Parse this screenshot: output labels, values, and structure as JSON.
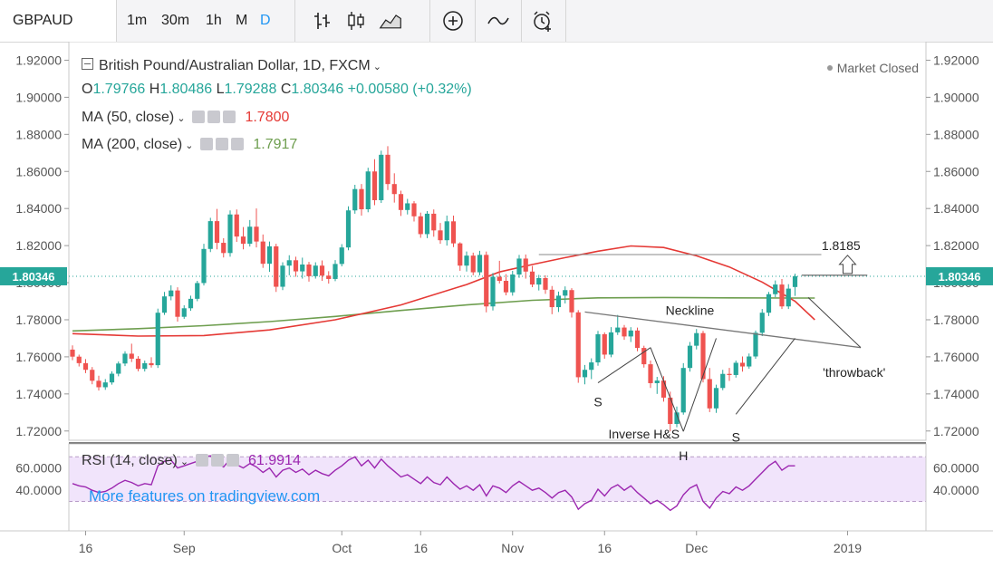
{
  "toolbar": {
    "symbol": "GBPAUD",
    "intervals": [
      "1m",
      "30m",
      "1h",
      "M",
      "D"
    ],
    "active_interval": "D",
    "icons": [
      "bar-style-icon",
      "candle-style-icon",
      "area-style-icon",
      "add-indicator-icon",
      "drawing-icon",
      "alert-icon"
    ]
  },
  "legend": {
    "title": "British Pound/Australian Dollar, 1D, FXCM",
    "ohlc": [
      {
        "k": "O",
        "v": "1.79766"
      },
      {
        "k": "H",
        "v": "1.80486"
      },
      {
        "k": "L",
        "v": "1.79288"
      },
      {
        "k": "C",
        "v": "1.80346"
      }
    ],
    "change": "+0.00580 (+0.32%)",
    "ma50_label": "MA (50, close)",
    "ma50_value": "1.7800",
    "ma200_label": "MA (200, close)",
    "ma200_value": "1.7917",
    "market_status": "Market Closed"
  },
  "rsi": {
    "label": "RSI (14, close)",
    "value": "61.9914",
    "ticks": [
      "60.0000",
      "40.0000"
    ]
  },
  "promo": "More features on tradingview.com",
  "colors": {
    "up": "#26a69a",
    "down": "#ef5350",
    "ma50": "#e53935",
    "ma200": "#6e9e4f",
    "rsi_line": "#9c27b0",
    "rsi_band": "#f1e4fb",
    "price_label_bg": "#26a69a",
    "link": "#2196f3"
  },
  "chart_data": {
    "type": "candlestick",
    "symbol": "GBPAUD",
    "ylim": [
      1.715,
      1.93
    ],
    "ytick_labels": [
      "1.92000",
      "1.90000",
      "1.88000",
      "1.86000",
      "1.84000",
      "1.82000",
      "1.80000",
      "1.78000",
      "1.76000",
      "1.74000",
      "1.72000"
    ],
    "last_price_label": "1.80346",
    "xtick_labels": [
      "16",
      "Sep",
      "Oct",
      "16",
      "Nov",
      "16",
      "Dec",
      "2019"
    ],
    "candles": [
      [
        1.7639,
        1.7662,
        1.7582,
        1.7601
      ],
      [
        1.7601,
        1.7612,
        1.7548,
        1.7566
      ],
      [
        1.7566,
        1.7588,
        1.7512,
        1.753
      ],
      [
        1.753,
        1.7545,
        1.7452,
        1.7471
      ],
      [
        1.7471,
        1.7498,
        1.7418,
        1.7436
      ],
      [
        1.7436,
        1.748,
        1.7422,
        1.7462
      ],
      [
        1.7462,
        1.7522,
        1.745,
        1.7509
      ],
      [
        1.7509,
        1.7575,
        1.7495,
        1.7564
      ],
      [
        1.7564,
        1.763,
        1.755,
        1.7617
      ],
      [
        1.7617,
        1.7671,
        1.7572,
        1.759
      ],
      [
        1.759,
        1.7604,
        1.7522,
        1.7535
      ],
      [
        1.7535,
        1.758,
        1.7521,
        1.7566
      ],
      [
        1.7566,
        1.7598,
        1.7542,
        1.7555
      ],
      [
        1.7555,
        1.786,
        1.754,
        1.7838
      ],
      [
        1.7838,
        1.795,
        1.7826,
        1.7926
      ],
      [
        1.7926,
        1.7986,
        1.7905,
        1.7958
      ],
      [
        1.7958,
        1.7975,
        1.779,
        1.7816
      ],
      [
        1.7816,
        1.7878,
        1.7805,
        1.7862
      ],
      [
        1.7862,
        1.793,
        1.7848,
        1.7913
      ],
      [
        1.7913,
        1.801,
        1.79,
        1.7998
      ],
      [
        1.7998,
        1.821,
        1.7985,
        1.8182
      ],
      [
        1.8182,
        1.835,
        1.8165,
        1.8332
      ],
      [
        1.8332,
        1.8398,
        1.818,
        1.8215
      ],
      [
        1.8215,
        1.824,
        1.8136,
        1.816
      ],
      [
        1.816,
        1.839,
        1.814,
        1.8368
      ],
      [
        1.8368,
        1.8395,
        1.822,
        1.8249
      ],
      [
        1.8249,
        1.83,
        1.818,
        1.821
      ],
      [
        1.821,
        1.8338,
        1.8195,
        1.8302
      ],
      [
        1.8302,
        1.84,
        1.819,
        1.8222
      ],
      [
        1.8222,
        1.826,
        1.808,
        1.8102
      ],
      [
        1.8102,
        1.8222,
        1.8058,
        1.8196
      ],
      [
        1.8196,
        1.821,
        1.795,
        1.7978
      ],
      [
        1.7978,
        1.811,
        1.796,
        1.8092
      ],
      [
        1.8092,
        1.8148,
        1.804,
        1.8121
      ],
      [
        1.8121,
        1.814,
        1.8032,
        1.8061
      ],
      [
        1.8061,
        1.8135,
        1.8022,
        1.8098
      ],
      [
        1.8098,
        1.8112,
        1.8006,
        1.8035
      ],
      [
        1.8035,
        1.811,
        1.8022,
        1.8092
      ],
      [
        1.8092,
        1.812,
        1.801,
        1.8038
      ],
      [
        1.8038,
        1.8062,
        1.7995,
        1.802
      ],
      [
        1.802,
        1.8122,
        1.8008,
        1.8101
      ],
      [
        1.8101,
        1.8208,
        1.8088,
        1.819
      ],
      [
        1.819,
        1.8412,
        1.8175,
        1.839
      ],
      [
        1.839,
        1.8528,
        1.8372,
        1.8505
      ],
      [
        1.8505,
        1.8532,
        1.8362,
        1.8396
      ],
      [
        1.8396,
        1.862,
        1.838,
        1.86
      ],
      [
        1.86,
        1.8666,
        1.8418,
        1.8445
      ],
      [
        1.8445,
        1.8712,
        1.843,
        1.869
      ],
      [
        1.869,
        1.8736,
        1.85,
        1.8532
      ],
      [
        1.8532,
        1.859,
        1.8432,
        1.8478
      ],
      [
        1.8478,
        1.8496,
        1.836,
        1.8392
      ],
      [
        1.8392,
        1.8452,
        1.8368,
        1.8428
      ],
      [
        1.8428,
        1.844,
        1.833,
        1.8358
      ],
      [
        1.8358,
        1.8378,
        1.8242,
        1.8262
      ],
      [
        1.8262,
        1.8386,
        1.824,
        1.8372
      ],
      [
        1.8372,
        1.8395,
        1.8248,
        1.8282
      ],
      [
        1.8282,
        1.8322,
        1.821,
        1.8229
      ],
      [
        1.8229,
        1.8362,
        1.82,
        1.8331
      ],
      [
        1.8331,
        1.8362,
        1.8192,
        1.8212
      ],
      [
        1.8212,
        1.8218,
        1.8064,
        1.8092
      ],
      [
        1.8092,
        1.8168,
        1.806,
        1.8146
      ],
      [
        1.8146,
        1.8162,
        1.804,
        1.8056
      ],
      [
        1.8056,
        1.8172,
        1.804,
        1.815
      ],
      [
        1.815,
        1.8168,
        1.784,
        1.7872
      ],
      [
        1.7872,
        1.8052,
        1.785,
        1.8032
      ],
      [
        1.8032,
        1.8118,
        1.7996,
        1.801
      ],
      [
        1.801,
        1.8046,
        1.7932,
        1.7948
      ],
      [
        1.7948,
        1.8064,
        1.793,
        1.8044
      ],
      [
        1.8044,
        1.815,
        1.8026,
        1.813
      ],
      [
        1.813,
        1.8152,
        1.8022,
        1.806
      ],
      [
        1.806,
        1.809,
        1.7976,
        1.799
      ],
      [
        1.799,
        1.8042,
        1.7958,
        1.8025
      ],
      [
        1.8025,
        1.804,
        1.794,
        1.7962
      ],
      [
        1.7962,
        1.7982,
        1.783,
        1.7868
      ],
      [
        1.7868,
        1.7952,
        1.7842,
        1.793
      ],
      [
        1.793,
        1.798,
        1.7888,
        1.796
      ],
      [
        1.796,
        1.797,
        1.7812,
        1.784
      ],
      [
        1.784,
        1.7852,
        1.746,
        1.749
      ],
      [
        1.749,
        1.7556,
        1.7452,
        1.753
      ],
      [
        1.753,
        1.7592,
        1.748,
        1.757
      ],
      [
        1.757,
        1.774,
        1.7552,
        1.7722
      ],
      [
        1.7722,
        1.7732,
        1.759,
        1.7612
      ],
      [
        1.7612,
        1.776,
        1.7598,
        1.7732
      ],
      [
        1.7732,
        1.7826,
        1.7718,
        1.7758
      ],
      [
        1.7758,
        1.7772,
        1.7692,
        1.771
      ],
      [
        1.771,
        1.776,
        1.768,
        1.7742
      ],
      [
        1.7742,
        1.7758,
        1.763,
        1.7648
      ],
      [
        1.7648,
        1.766,
        1.7542,
        1.756
      ],
      [
        1.756,
        1.758,
        1.7432,
        1.7458
      ],
      [
        1.7458,
        1.7492,
        1.74,
        1.7472
      ],
      [
        1.7472,
        1.7496,
        1.7358,
        1.738
      ],
      [
        1.738,
        1.7412,
        1.7198,
        1.7238
      ],
      [
        1.7238,
        1.7332,
        1.722,
        1.73
      ],
      [
        1.73,
        1.7566,
        1.7288,
        1.754
      ],
      [
        1.754,
        1.768,
        1.752,
        1.766
      ],
      [
        1.766,
        1.775,
        1.764,
        1.7728
      ],
      [
        1.7728,
        1.774,
        1.7462,
        1.748
      ],
      [
        1.748,
        1.754,
        1.7302,
        1.7322
      ],
      [
        1.7322,
        1.745,
        1.7298,
        1.7432
      ],
      [
        1.7432,
        1.753,
        1.742,
        1.7508
      ],
      [
        1.7508,
        1.754,
        1.747,
        1.7502
      ],
      [
        1.7502,
        1.758,
        1.7488,
        1.7568
      ],
      [
        1.7568,
        1.7602,
        1.752,
        1.7548
      ],
      [
        1.7548,
        1.7618,
        1.7536,
        1.7602
      ],
      [
        1.7602,
        1.7742,
        1.759,
        1.773
      ],
      [
        1.773,
        1.7858,
        1.7712,
        1.7838
      ],
      [
        1.7838,
        1.795,
        1.782,
        1.7938
      ],
      [
        1.7938,
        1.8012,
        1.7922,
        1.799
      ],
      [
        1.799,
        1.802,
        1.7858,
        1.7872
      ],
      [
        1.7872,
        1.7992,
        1.7858,
        1.7968
      ],
      [
        1.79766,
        1.80486,
        1.79288,
        1.80346
      ]
    ],
    "ma50": [
      [
        0,
        1.7725
      ],
      [
        10,
        1.7712
      ],
      [
        20,
        1.7715
      ],
      [
        30,
        1.7745
      ],
      [
        40,
        1.78
      ],
      [
        50,
        1.788
      ],
      [
        60,
        1.799
      ],
      [
        65,
        1.8058
      ],
      [
        70,
        1.8098
      ],
      [
        75,
        1.8135
      ],
      [
        80,
        1.817
      ],
      [
        85,
        1.8198
      ],
      [
        90,
        1.819
      ],
      [
        95,
        1.8145
      ],
      [
        100,
        1.8085
      ],
      [
        105,
        1.8003
      ],
      [
        110,
        1.79
      ],
      [
        113,
        1.78
      ]
    ],
    "ma200": [
      [
        0,
        1.774
      ],
      [
        10,
        1.7752
      ],
      [
        20,
        1.7768
      ],
      [
        30,
        1.779
      ],
      [
        40,
        1.7818
      ],
      [
        50,
        1.785
      ],
      [
        60,
        1.788
      ],
      [
        70,
        1.7905
      ],
      [
        80,
        1.7918
      ],
      [
        90,
        1.792
      ],
      [
        100,
        1.7918
      ],
      [
        110,
        1.7917
      ],
      [
        113,
        1.7917
      ]
    ],
    "rsi_values": [
      46,
      44,
      43,
      40,
      38,
      39,
      42,
      46,
      49,
      47,
      44,
      46,
      45,
      62,
      66,
      67,
      60,
      62,
      64,
      66,
      70,
      71,
      65,
      61,
      68,
      63,
      60,
      64,
      61,
      56,
      60,
      52,
      58,
      60,
      56,
      59,
      54,
      58,
      55,
      53,
      58,
      62,
      67,
      70,
      62,
      67,
      60,
      68,
      62,
      57,
      52,
      54,
      50,
      46,
      52,
      47,
      45,
      52,
      46,
      41,
      44,
      40,
      45,
      35,
      44,
      42,
      38,
      44,
      48,
      44,
      40,
      42,
      38,
      33,
      38,
      40,
      34,
      23,
      28,
      31,
      41,
      35,
      42,
      45,
      40,
      44,
      38,
      33,
      28,
      31,
      27,
      22,
      26,
      36,
      42,
      45,
      30,
      24,
      33,
      39,
      37,
      43,
      40,
      44,
      50,
      56,
      62,
      66,
      58,
      62,
      61.99
    ],
    "rsi_ylim": [
      15,
      80
    ],
    "rsi_band": [
      30,
      70
    ],
    "annotations": {
      "pattern_label": "Inverse H&S",
      "neckline_label": "Neckline",
      "shoulder_label": "S",
      "head_label": "H",
      "throwback_label": "'throwback'",
      "target_label": "1.8185"
    }
  }
}
